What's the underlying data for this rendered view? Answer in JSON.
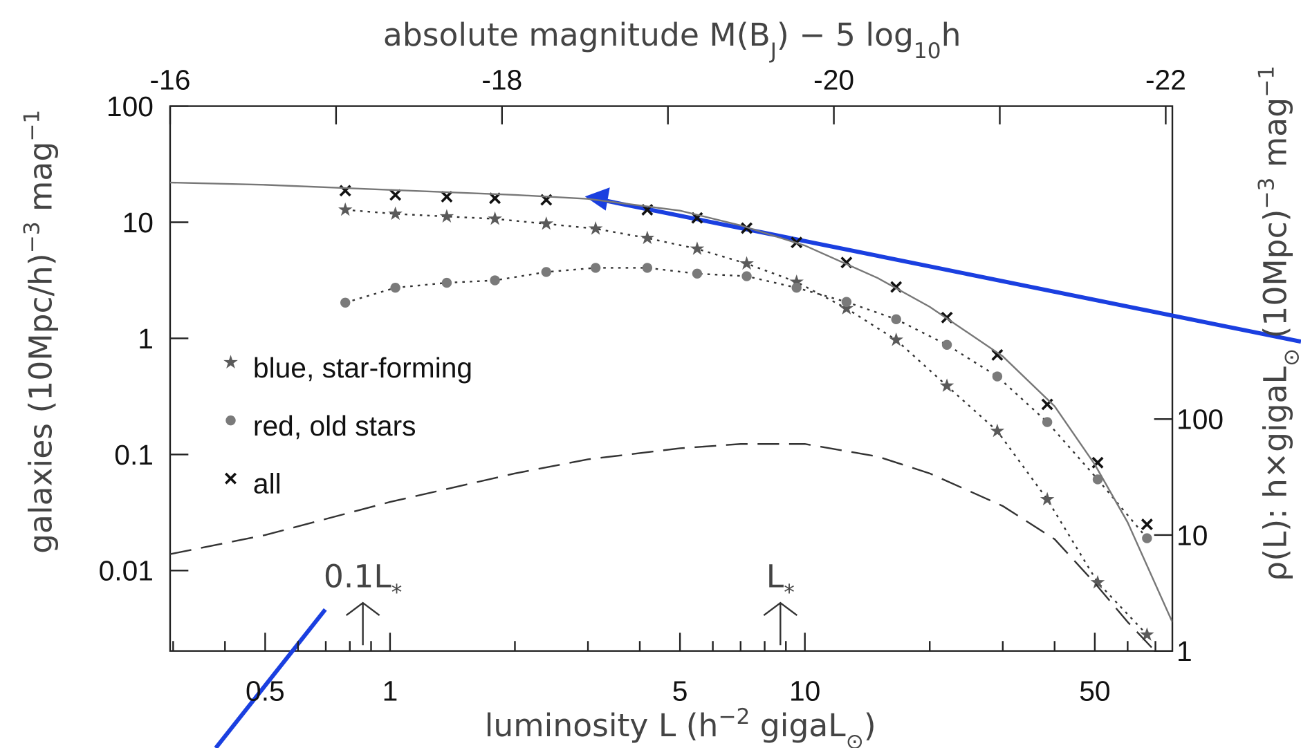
{
  "chart_data": {
    "type": "scatter",
    "x2label": [
      {
        "text": "absolute magnitude M(B"
      },
      {
        "text": "J",
        "script": "sub"
      },
      {
        "text": ") − 5 log"
      },
      {
        "text": "10",
        "script": "sub"
      },
      {
        "text": "h"
      }
    ],
    "xlabel": [
      {
        "text": "luminosity L (h"
      },
      {
        "text": "−2",
        "script": "sup"
      },
      {
        "text": " gigaL"
      },
      {
        "text": "⊙",
        "script": "sub"
      },
      {
        "text": ")"
      }
    ],
    "ylabel": [
      {
        "text": "galaxies (10Mpc/h)"
      },
      {
        "text": "−3",
        "script": "sup"
      },
      {
        "text": " mag"
      },
      {
        "text": "−1",
        "script": "sup"
      }
    ],
    "y2label": [
      {
        "text": "ρ(L): h×gigaL"
      },
      {
        "text": "⊙",
        "script": "sub"
      },
      {
        "text": " (10Mpc)"
      },
      {
        "text": "−3",
        "script": "sup"
      },
      {
        "text": " mag"
      },
      {
        "text": "−1",
        "script": "sup"
      }
    ],
    "xscale": "log",
    "yscale": "log",
    "y2scale": "log",
    "xlim": [
      0.295,
      76.9
    ],
    "xticks": [
      0.5,
      1,
      5,
      10,
      50
    ],
    "xminor": [
      0.3,
      0.4,
      0.6,
      0.7,
      0.8,
      0.9,
      2,
      3,
      4,
      6,
      7,
      8,
      9,
      20,
      30,
      40,
      60,
      70
    ],
    "x2lim": [
      -16,
      -22.04
    ],
    "x2ticks": [
      -16,
      -18,
      -20,
      -22
    ],
    "x2minor": [
      -17,
      -19,
      -21
    ],
    "ylim": [
      0.00203,
      100
    ],
    "yticks": [
      100,
      10,
      1,
      0.1,
      0.01
    ],
    "y2lim": [
      1,
      50000
    ],
    "y2ticks": [
      100,
      10,
      1
    ],
    "legend": "center left",
    "series": [
      {
        "name": "blue, star-forming",
        "marker": "star",
        "line": "dotted",
        "color": "#5a5a5a",
        "x": [
          0.78,
          1.03,
          1.37,
          1.79,
          2.38,
          3.13,
          4.17,
          5.5,
          7.24,
          9.55,
          12.6,
          16.6,
          22,
          29.1,
          38.4,
          50.8,
          66.8
        ],
        "values": [
          12.8,
          11.8,
          11.2,
          10.7,
          9.7,
          8.8,
          7.3,
          5.9,
          4.4,
          3.06,
          1.81,
          0.97,
          0.39,
          0.159,
          0.041,
          0.0079,
          0.0028
        ]
      },
      {
        "name": "red, old stars",
        "marker": "circle",
        "line": "dotted",
        "color": "#7a7a7a",
        "x": [
          0.78,
          1.03,
          1.37,
          1.79,
          2.38,
          3.13,
          4.17,
          5.5,
          7.24,
          9.55,
          12.6,
          16.6,
          22,
          29.1,
          38.4,
          50.8,
          66.8
        ],
        "values": [
          2.03,
          2.73,
          3.01,
          3.16,
          3.73,
          4.05,
          4.05,
          3.61,
          3.43,
          2.73,
          2.06,
          1.46,
          0.88,
          0.47,
          0.19,
          0.061,
          0.019
        ]
      },
      {
        "name": "all",
        "marker": "x",
        "color": "#111111",
        "x": [
          0.78,
          1.03,
          1.37,
          1.79,
          2.38,
          4.17,
          5.5,
          7.24,
          9.55,
          12.6,
          16.6,
          22,
          29.1,
          38.4,
          50.8,
          66.8
        ],
        "values": [
          18.7,
          17.2,
          16.6,
          16.1,
          15.6,
          12.8,
          10.9,
          8.9,
          6.7,
          4.5,
          2.77,
          1.51,
          0.72,
          0.27,
          0.085,
          0.025
        ]
      },
      {
        "line": "solid",
        "color": "#777777",
        "x": [
          0.295,
          0.5,
          1,
          2,
          3,
          5,
          7,
          10,
          15,
          20,
          30,
          40,
          50,
          60,
          76.9
        ],
        "values": [
          22,
          21,
          19,
          17.2,
          15.9,
          12.6,
          9.4,
          6.3,
          3.3,
          1.87,
          0.7,
          0.26,
          0.082,
          0.026,
          0.0036
        ]
      },
      {
        "line": "dashed",
        "color": "#555555",
        "axis": "y2",
        "x": [
          0.295,
          0.5,
          1,
          2,
          3,
          5,
          7,
          10,
          15,
          20,
          30,
          40,
          50,
          60,
          69.8
        ],
        "values": [
          6.85,
          10,
          19.3,
          34,
          45,
          56,
          61,
          61,
          47.5,
          34,
          17.8,
          9.2,
          3.85,
          1.78,
          1
        ]
      }
    ],
    "annotations": [
      {
        "text": "0.1L",
        "sub": "*",
        "x": 0.86
      },
      {
        "text": "L",
        "sub": "*",
        "x": 8.73
      }
    ]
  }
}
